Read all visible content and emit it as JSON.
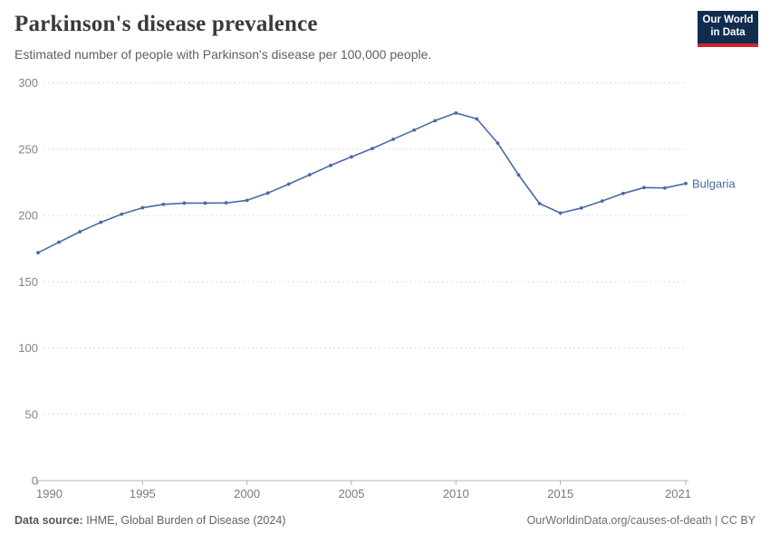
{
  "header": {
    "title": "Parkinson's disease prevalence",
    "subtitle": "Estimated number of people with Parkinson's disease per 100,000 people."
  },
  "logo": {
    "line1": "Our World",
    "line2": "in Data",
    "bg_color": "#102d50",
    "accent_color": "#cf2429"
  },
  "chart_data": {
    "type": "line",
    "title": "Parkinson's disease prevalence",
    "subtitle": "Estimated number of people with Parkinson's disease per 100,000 people.",
    "x": [
      1990,
      1991,
      1992,
      1993,
      1994,
      1995,
      1996,
      1997,
      1998,
      1999,
      2000,
      2001,
      2002,
      2003,
      2004,
      2005,
      2006,
      2007,
      2008,
      2009,
      2010,
      2011,
      2012,
      2013,
      2014,
      2015,
      2016,
      2017,
      2018,
      2019,
      2020,
      2021
    ],
    "series": [
      {
        "name": "Bulgaria",
        "color": "#4a69a5",
        "values": [
          171.9,
          179.8,
          187.7,
          194.8,
          201.0,
          205.8,
          208.4,
          209.3,
          209.3,
          209.5,
          211.4,
          216.9,
          223.7,
          230.7,
          237.7,
          244.2,
          250.5,
          257.5,
          264.4,
          271.5,
          277.3,
          272.8,
          254.6,
          230.5,
          209.0,
          201.8,
          205.6,
          210.9,
          216.6,
          221.0,
          220.7,
          224.1
        ]
      }
    ],
    "xlabel": "",
    "ylabel": "",
    "ylim": [
      0,
      300
    ],
    "yticks": [
      0,
      50,
      100,
      150,
      200,
      250,
      300
    ],
    "xticks": [
      1990,
      1995,
      2000,
      2005,
      2010,
      2015,
      2021
    ],
    "grid": true,
    "grid_color": "#dcdcdc",
    "axis_color": "#b3b3b3",
    "tick_label_color": "#848484",
    "legend_position": "end-of-line"
  },
  "footer": {
    "source_label": "Data source:",
    "source_text": " IHME, Global Burden of Disease (2024)",
    "right_text": "OurWorldinData.org/causes-of-death | CC BY"
  }
}
